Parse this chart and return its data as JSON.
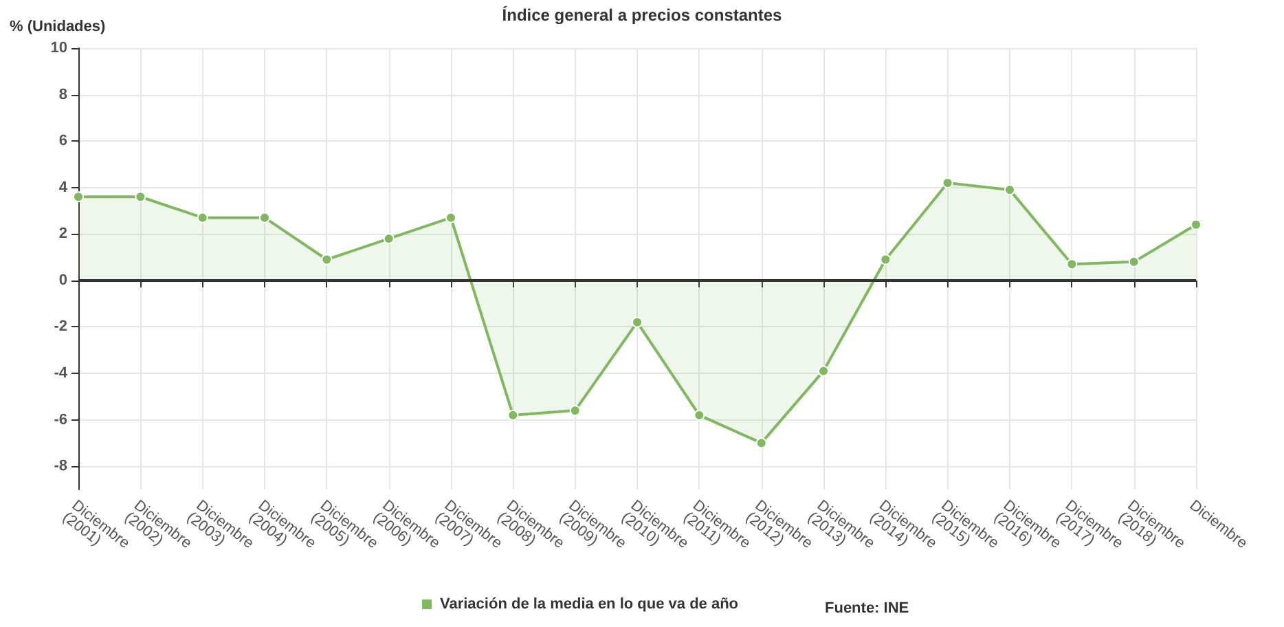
{
  "chart_data": {
    "type": "area",
    "title": "Índice general a precios constantes",
    "ylabel": "% (Unidades)",
    "categories": [
      "Diciembre (2001)",
      "Diciembre (2002)",
      "Diciembre (2003)",
      "Diciembre (2004)",
      "Diciembre (2005)",
      "Diciembre (2006)",
      "Diciembre (2007)",
      "Diciembre (2008)",
      "Diciembre (2009)",
      "Diciembre (2010)",
      "Diciembre (2011)",
      "Diciembre (2012)",
      "Diciembre (2013)",
      "Diciembre (2014)",
      "Diciembre (2015)",
      "Diciembre (2016)",
      "Diciembre (2017)",
      "Diciembre (2018)",
      "Diciembre"
    ],
    "series": [
      {
        "name": "Variación de la media en lo que va de año",
        "color": "#7fb85f",
        "values": [
          3.6,
          3.6,
          2.7,
          2.7,
          0.9,
          1.8,
          2.7,
          -5.8,
          -5.6,
          -1.8,
          -5.8,
          -7.0,
          -3.9,
          0.9,
          4.2,
          3.9,
          0.7,
          0.8,
          2.4
        ]
      }
    ],
    "ylim": [
      -9,
      10
    ],
    "yticks": [
      -8,
      -6,
      -4,
      -2,
      0,
      2,
      4,
      6,
      8,
      10
    ],
    "ref_lines": [
      {
        "axis": "y",
        "value": 0,
        "color": "#333333"
      }
    ],
    "annotations": [
      "Fuente: INE"
    ],
    "grid": true,
    "legend": "bottom",
    "marker": "circle",
    "line_style": "solid"
  }
}
